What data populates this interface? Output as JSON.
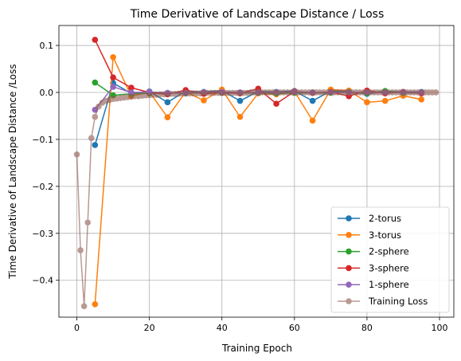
{
  "chart_data": {
    "type": "line",
    "title": "Time Derivative of Landscape Distance / Loss",
    "xlabel": "Training Epoch",
    "ylabel": "Time Derivative of Landscape Distance /Loss",
    "xlim": [
      -4.95,
      103.95
    ],
    "ylim": [
      -0.4785,
      0.1425
    ],
    "xticks": [
      0,
      20,
      40,
      60,
      80,
      100
    ],
    "yticks": [
      0.1,
      0.0,
      -0.1,
      -0.2,
      -0.3,
      -0.4
    ],
    "ytick_labels": [
      "0.1",
      "0.0",
      "−0.1",
      "−0.2",
      "−0.3",
      "−0.4"
    ],
    "grid": true,
    "legend_position": "lower-right",
    "series": [
      {
        "name": "2-torus",
        "color": "#1f77b4",
        "alpha": 1,
        "x": [
          5,
          10,
          15,
          20,
          25,
          30,
          35,
          40,
          45,
          50,
          55,
          60,
          65,
          70,
          75,
          80,
          85,
          90,
          95
        ],
        "y": [
          -0.112,
          0.02,
          -0.002,
          0.002,
          -0.021,
          0.003,
          0.001,
          0.004,
          -0.018,
          0.002,
          0.001,
          0.003,
          -0.018,
          0.003,
          0.002,
          -0.003,
          0.002,
          0.001,
          0.001
        ]
      },
      {
        "name": "3-torus",
        "color": "#ff7f0e",
        "alpha": 1,
        "x": [
          5,
          10,
          15,
          20,
          25,
          30,
          35,
          40,
          45,
          50,
          55,
          60,
          65,
          70,
          75,
          80,
          85,
          90,
          95
        ],
        "y": [
          -0.451,
          0.075,
          -0.008,
          0.001,
          -0.053,
          0.001,
          -0.017,
          0.006,
          -0.052,
          -0.002,
          -0.004,
          0.002,
          -0.06,
          0.006,
          0.004,
          -0.021,
          -0.018,
          -0.007,
          -0.015
        ]
      },
      {
        "name": "2-sphere",
        "color": "#2ca02c",
        "alpha": 1,
        "x": [
          5,
          10,
          15,
          20,
          25,
          30,
          35,
          40,
          45,
          50,
          55,
          60,
          65,
          70,
          75,
          80,
          85,
          90,
          95
        ],
        "y": [
          0.021,
          -0.006,
          -0.003,
          -0.002,
          -0.001,
          -0.002,
          -0.001,
          -0.001,
          -0.001,
          -0.001,
          -0.002,
          -0.001,
          -0.001,
          -0.001,
          0.001,
          -0.002,
          0.003,
          -0.001,
          -0.001
        ]
      },
      {
        "name": "3-sphere",
        "color": "#d62728",
        "alpha": 1,
        "x": [
          5,
          10,
          15,
          20,
          25,
          30,
          35,
          40,
          45,
          50,
          55,
          60,
          65,
          70,
          75,
          80,
          85,
          90,
          95
        ],
        "y": [
          0.112,
          0.032,
          0.01,
          0.0,
          -0.004,
          0.005,
          -0.003,
          0.0,
          -0.002,
          0.008,
          -0.024,
          0.002,
          -0.001,
          0.001,
          -0.008,
          0.004,
          -0.002,
          0.001,
          -0.002
        ]
      },
      {
        "name": "1-sphere",
        "color": "#9467bd",
        "alpha": 1,
        "x": [
          5,
          10,
          15,
          20,
          25,
          30,
          35,
          40,
          45,
          50,
          55,
          60,
          65,
          70,
          75,
          80,
          85,
          90,
          95
        ],
        "y": [
          -0.037,
          0.012,
          0.0,
          0.001,
          -0.001,
          -0.001,
          0.001,
          0.001,
          0.0,
          0.0,
          0.0,
          0.001,
          0.0,
          0.0,
          0.0,
          0.0,
          0.0,
          0.0,
          0.0
        ]
      },
      {
        "name": "Training Loss",
        "color": "#8c564b",
        "alpha": 0.6,
        "x": [
          0,
          1,
          2,
          3,
          4,
          5,
          6,
          7,
          8,
          9,
          10,
          11,
          12,
          13,
          14,
          15,
          16,
          17,
          18,
          19,
          20,
          21,
          22,
          23,
          24,
          25,
          26,
          27,
          28,
          29,
          30,
          31,
          32,
          33,
          34,
          35,
          36,
          37,
          38,
          39,
          40,
          41,
          42,
          43,
          44,
          45,
          46,
          47,
          48,
          49,
          50,
          51,
          52,
          53,
          54,
          55,
          56,
          57,
          58,
          59,
          60,
          61,
          62,
          63,
          64,
          65,
          66,
          67,
          68,
          69,
          70,
          71,
          72,
          73,
          74,
          75,
          76,
          77,
          78,
          79,
          80,
          81,
          82,
          83,
          84,
          85,
          86,
          87,
          88,
          89,
          90,
          91,
          92,
          93,
          94,
          95,
          96,
          97,
          98,
          99
        ],
        "y": [
          -0.132,
          -0.336,
          -0.455,
          -0.277,
          -0.097,
          -0.052,
          -0.03,
          -0.022,
          -0.018,
          -0.016,
          -0.014,
          -0.013,
          -0.012,
          -0.011,
          -0.01,
          -0.009,
          -0.008,
          -0.008,
          -0.007,
          -0.006,
          -0.006,
          -0.005,
          -0.005,
          -0.004,
          -0.004,
          -0.004,
          -0.003,
          -0.003,
          -0.003,
          -0.002,
          -0.002,
          -0.002,
          -0.002,
          -0.002,
          -0.002,
          -0.001,
          -0.001,
          -0.001,
          -0.001,
          -0.001,
          -0.001,
          -0.001,
          -0.001,
          -0.001,
          -0.001,
          -0.001,
          -0.001,
          -0.001,
          0.0,
          0.0,
          0.0,
          0.0,
          0.0,
          0.0,
          0.0,
          0.0,
          0.0,
          0.0,
          0.0,
          0.0,
          0.0,
          0.0,
          0.0,
          0.0,
          0.0,
          0.0,
          0.0,
          0.0,
          0.0,
          0.0,
          0.0,
          0.0,
          0.0,
          0.0,
          0.0,
          0.0,
          0.0,
          0.0,
          0.0,
          0.0,
          0.0,
          0.0,
          0.0,
          0.0,
          0.0,
          0.0,
          0.0,
          0.0,
          0.0,
          0.0,
          0.0,
          0.0,
          0.0,
          0.0,
          0.0,
          0.0,
          0.0,
          0.0,
          0.0,
          0.0
        ]
      }
    ]
  }
}
